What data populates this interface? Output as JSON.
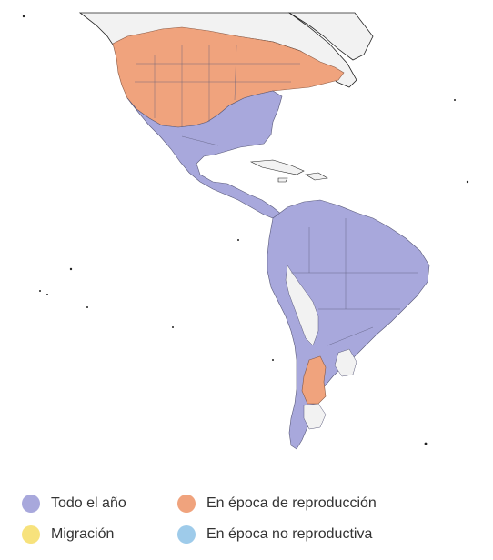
{
  "legend": {
    "items": [
      {
        "label": "Todo el año",
        "color": "#a8a8dc"
      },
      {
        "label": "En época de reproducción",
        "color": "#f0a37d"
      },
      {
        "label": "Migración",
        "color": "#f7e27c"
      },
      {
        "label": "En época no reproductiva",
        "color": "#9ecbea"
      }
    ]
  },
  "map": {
    "background_land_color": "#f2f2f2",
    "border_color": "#5a5a7a",
    "coast_color": "#222222"
  }
}
